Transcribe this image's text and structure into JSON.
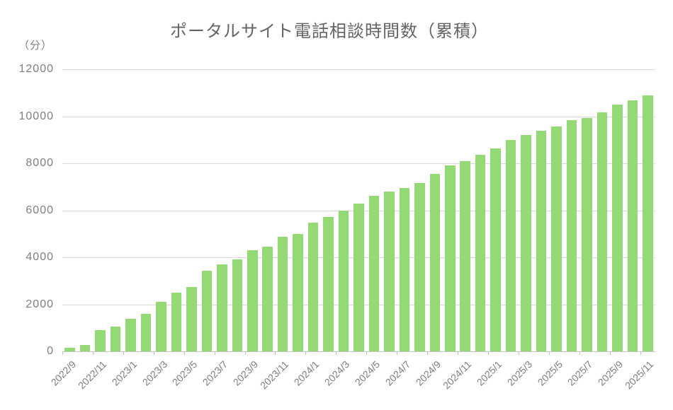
{
  "chart_data": {
    "type": "bar",
    "title": "ポータルサイト電話相談時間数（累積）",
    "ylabel": "（分）",
    "xlabel": "",
    "ylim": [
      0,
      12000
    ],
    "ytick_interval": 2000,
    "yticks": [
      0,
      2000,
      4000,
      6000,
      8000,
      10000,
      12000
    ],
    "grid": true,
    "legend": "none",
    "xtick_label_every": 2,
    "xtick_rotation_deg": -45,
    "categories": [
      "2022/9",
      "2022/10",
      "2022/11",
      "2022/12",
      "2023/1",
      "2023/2",
      "2023/3",
      "2023/4",
      "2023/5",
      "2023/6",
      "2023/7",
      "2023/8",
      "2023/9",
      "2023/10",
      "2023/11",
      "2023/12",
      "2024/1",
      "2024/2",
      "2024/3",
      "2024/4",
      "2024/5",
      "2024/6",
      "2024/7",
      "2024/8",
      "2024/9",
      "2024/10",
      "2024/11",
      "2024/12",
      "2025/1",
      "2025/2",
      "2025/3",
      "2025/4",
      "2025/5",
      "2025/6",
      "2025/7",
      "2025/8",
      "2025/9",
      "2025/10",
      "2025/11"
    ],
    "values": [
      150,
      280,
      890,
      1060,
      1390,
      1600,
      2100,
      2500,
      2740,
      3440,
      3700,
      3900,
      4300,
      4450,
      4880,
      5000,
      5480,
      5720,
      6000,
      6300,
      6620,
      6790,
      6960,
      7160,
      7560,
      7920,
      8100,
      8360,
      8640,
      8990,
      9200,
      9390,
      9550,
      9840,
      9940,
      10180,
      10510,
      10690,
      10900
    ]
  },
  "colors": {
    "bar": "#93da74",
    "gridline": "#d9d9d9",
    "axis_line": "#c3c3c3",
    "axis_label": "#7f7f7f",
    "title": "#646464",
    "background": "#ffffff"
  }
}
